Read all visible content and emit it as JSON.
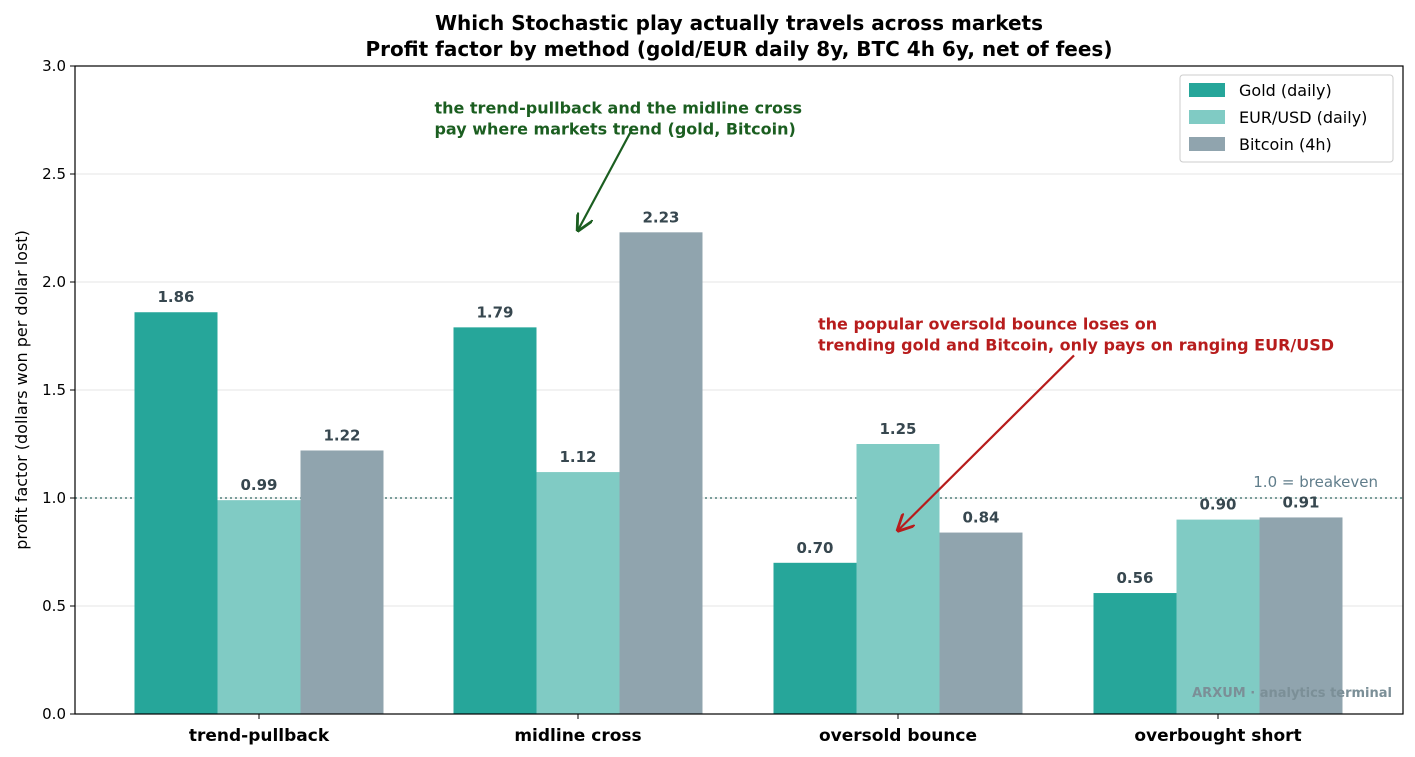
{
  "chart_data": {
    "type": "bar",
    "title": "Which Stochastic play actually travels across markets",
    "subtitle": "Profit factor by method (gold/EUR daily 8y, BTC 4h 6y, net of fees)",
    "ylabel": "profit factor (dollars won per dollar lost)",
    "xlabel": "",
    "ylim": [
      0,
      3.0
    ],
    "yticks": [
      "0.0",
      "0.5",
      "1.0",
      "1.5",
      "2.0",
      "2.5",
      "3.0"
    ],
    "grid": "horizontal",
    "legend_position": "top-right",
    "categories": [
      "trend-pullback",
      "midline cross",
      "oversold bounce",
      "overbought short"
    ],
    "series": [
      {
        "name": "Gold (daily)",
        "color": "#26a69a",
        "values": [
          1.86,
          1.79,
          0.7,
          0.56
        ],
        "labels": [
          "1.86",
          "1.79",
          "0.70",
          "0.56"
        ]
      },
      {
        "name": "EUR/USD (daily)",
        "color": "#80cbc4",
        "values": [
          0.99,
          1.12,
          1.25,
          0.9
        ],
        "labels": [
          "0.99",
          "1.12",
          "1.25",
          "0.90"
        ]
      },
      {
        "name": "Bitcoin (4h)",
        "color": "#90a4ae",
        "values": [
          1.22,
          2.23,
          0.84,
          0.91
        ],
        "labels": [
          "1.22",
          "2.23",
          "0.84",
          "0.91"
        ]
      }
    ],
    "reference_line": {
      "value": 1.0,
      "label": "1.0 = breakeven",
      "color": "#4f7f7a"
    },
    "annotations": [
      {
        "lines": [
          "the trend-pullback and the midline cross",
          "pay where markets trend (gold, Bitcoin)"
        ],
        "color": "#1b5e20",
        "arrow_to": {
          "category": 1,
          "value": 2.24
        },
        "text_at": {
          "category": 0.55,
          "value": 2.78
        },
        "arrow_from": {
          "category": 1.17,
          "value": 2.71
        }
      },
      {
        "lines": [
          "the popular oversold bounce loses on",
          "trending gold and Bitcoin, only pays on ranging EUR/USD"
        ],
        "color": "#b71c1c",
        "arrow_to": {
          "category": 2.0,
          "value": 0.85
        },
        "text_at": {
          "category": 1.75,
          "value": 1.78
        },
        "arrow_from": {
          "category": 2.55,
          "value": 1.66
        }
      }
    ],
    "watermark": "ARXUM · analytics terminal"
  }
}
